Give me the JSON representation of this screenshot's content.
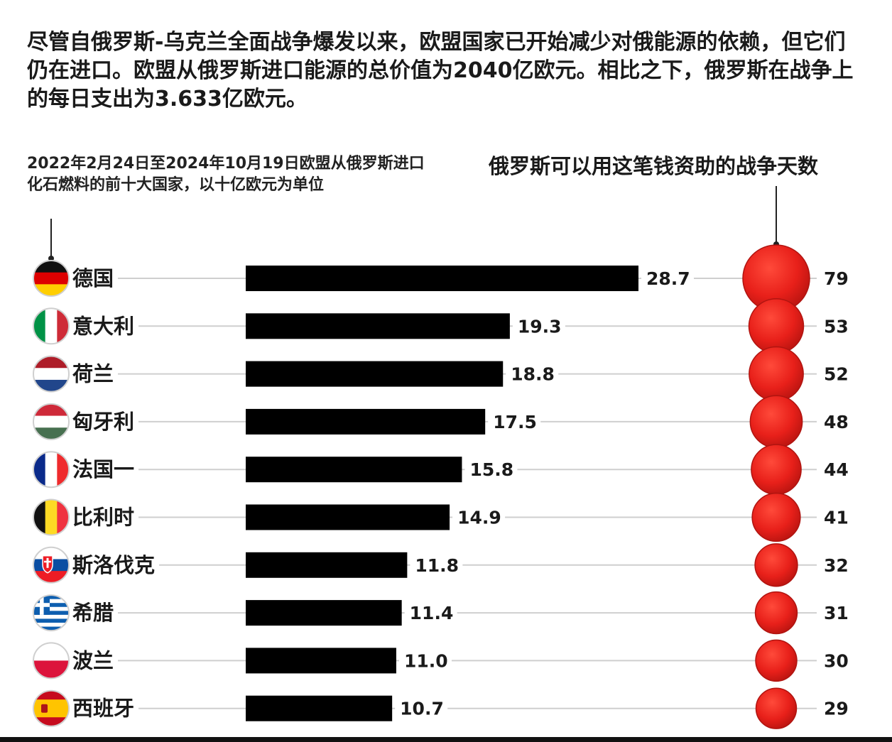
{
  "intro_text": "尽管自俄罗斯-乌克兰全面战争爆发以来，欧盟国家已开始减少对俄能源的依赖，但它们仍在进口。欧盟从俄罗斯进口能源的总价值为2040亿欧元。相比之下，俄罗斯在战争上的每日支出为3.633亿欧元。",
  "chart_data": {
    "type": "bar",
    "title": "2022年2月24日至2024年10月19日欧盟从俄罗斯进口化石燃料的前十大国家，以十亿欧元为单位",
    "secondary_title": "俄罗斯可以用这笔钱资助的战争天数",
    "categories": [
      "德国",
      "意大利",
      "荷兰",
      "匈牙利",
      "法国一",
      "比利时",
      "斯洛伐克",
      "希腊",
      "波兰",
      "西班牙"
    ],
    "series": [
      {
        "values": [
          28.7,
          19.3,
          18.8,
          17.5,
          15.8,
          14.9,
          11.8,
          11.4,
          11.0,
          10.7
        ]
      },
      {
        "values": [
          79,
          53,
          52,
          48,
          44,
          41,
          32,
          31,
          30,
          29
        ]
      }
    ],
    "value_labels": [
      "28.7",
      "19.3",
      "18.8",
      "17.5",
      "15.8",
      "14.9",
      "11.8",
      "11.4",
      "11.0",
      "10.7"
    ],
    "days_labels": [
      "79",
      "53",
      "52",
      "48",
      "44",
      "41",
      "32",
      "31",
      "30",
      "29"
    ],
    "colors": {
      "bar": "#000000",
      "bubble": "#e8201a",
      "bubble_edge": "#b01410",
      "line": "#cfcfcf"
    },
    "flag_icons": [
      "germany-flag-icon",
      "italy-flag-icon",
      "netherlands-flag-icon",
      "hungary-flag-icon",
      "france-flag-icon",
      "belgium-flag-icon",
      "slovakia-flag-icon",
      "greece-flag-icon",
      "poland-flag-icon",
      "spain-flag-icon"
    ]
  }
}
